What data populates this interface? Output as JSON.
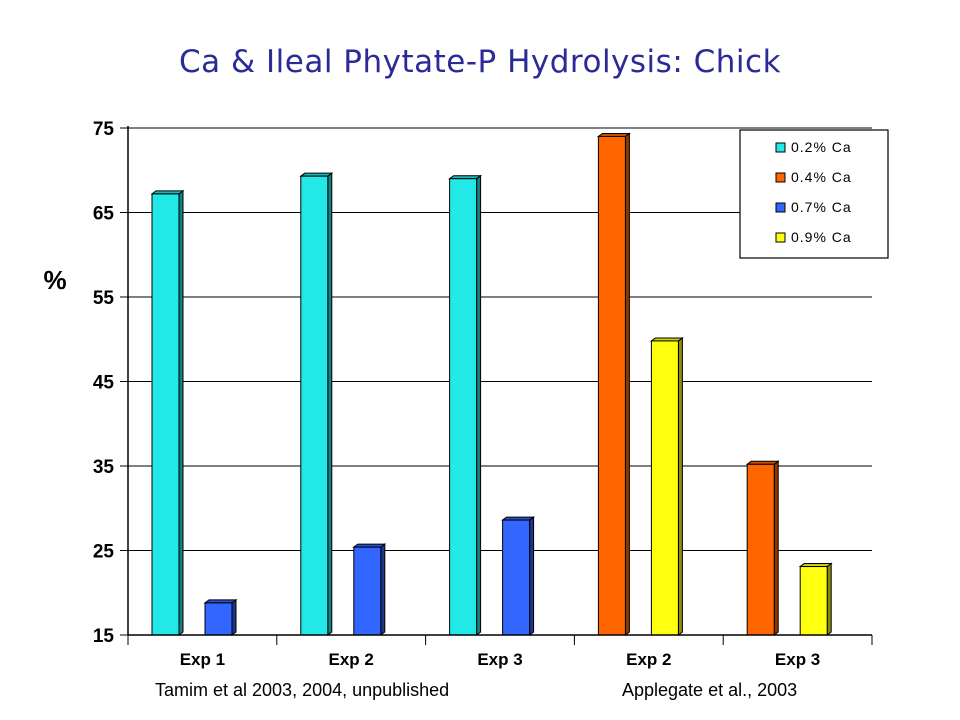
{
  "title": "Ca & Ileal Phytate-P Hydrolysis: Chick",
  "sources": {
    "left": "Tamim et al  2003, 2004, unpublished",
    "right": "Applegate et al.,  2003"
  },
  "colors": {
    "0.2% Ca": "#22e8e8",
    "0.4% Ca": "#ff6600",
    "0.7% Ca": "#3366ff",
    "0.9% Ca": "#ffff10"
  },
  "chart_data": {
    "type": "bar",
    "title": "Ca & Ileal Phytate-P Hydrolysis: Chick",
    "xlabel": "",
    "ylabel": "%",
    "ylim": [
      15,
      75
    ],
    "yticks": [
      15,
      25,
      35,
      45,
      55,
      65,
      75
    ],
    "grid": true,
    "legend_position": "top-right",
    "categories": [
      "Exp 1",
      "Exp 2",
      "Exp 3",
      "Exp 2",
      "Exp 3"
    ],
    "series": [
      {
        "name": "0.2% Ca",
        "values": [
          67.2,
          69.3,
          69.0,
          null,
          null
        ]
      },
      {
        "name": "0.4% Ca",
        "values": [
          null,
          null,
          null,
          74.0,
          35.2
        ]
      },
      {
        "name": "0.7% Ca",
        "values": [
          18.8,
          25.4,
          28.6,
          null,
          null
        ]
      },
      {
        "name": "0.9% Ca",
        "values": [
          null,
          null,
          null,
          49.8,
          23.1
        ]
      }
    ]
  }
}
